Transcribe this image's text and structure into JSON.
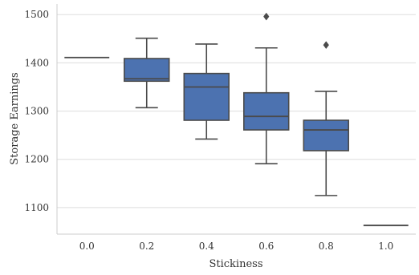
{
  "chart_data": {
    "type": "box",
    "xlabel": "Stickiness",
    "ylabel": "Storage Earnings",
    "categories": [
      "0.0",
      "0.2",
      "0.4",
      "0.6",
      "0.8",
      "1.0"
    ],
    "yticks": [
      1100,
      1200,
      1300,
      1400,
      1500
    ],
    "ylim": [
      1045,
      1522
    ],
    "grid": true,
    "box_color": "#4c72b0",
    "line_color": "#4a4a4a",
    "boxes": [
      {
        "category": "0.0",
        "whisker_low": 1411,
        "q1": 1411,
        "median": 1411,
        "q3": 1411,
        "whisker_high": 1411,
        "outliers": []
      },
      {
        "category": "0.2",
        "whisker_low": 1307,
        "q1": 1362,
        "median": 1367,
        "q3": 1409,
        "whisker_high": 1451,
        "outliers": []
      },
      {
        "category": "0.4",
        "whisker_low": 1242,
        "q1": 1281,
        "median": 1350,
        "q3": 1378,
        "whisker_high": 1439,
        "outliers": []
      },
      {
        "category": "0.6",
        "whisker_low": 1191,
        "q1": 1261,
        "median": 1289,
        "q3": 1338,
        "whisker_high": 1431,
        "outliers": [
          1496
        ]
      },
      {
        "category": "0.8",
        "whisker_low": 1125,
        "q1": 1218,
        "median": 1261,
        "q3": 1281,
        "whisker_high": 1341,
        "outliers": [
          1437
        ]
      },
      {
        "category": "1.0",
        "whisker_low": 1063,
        "q1": 1063,
        "median": 1063,
        "q3": 1063,
        "whisker_high": 1063,
        "outliers": []
      }
    ]
  }
}
